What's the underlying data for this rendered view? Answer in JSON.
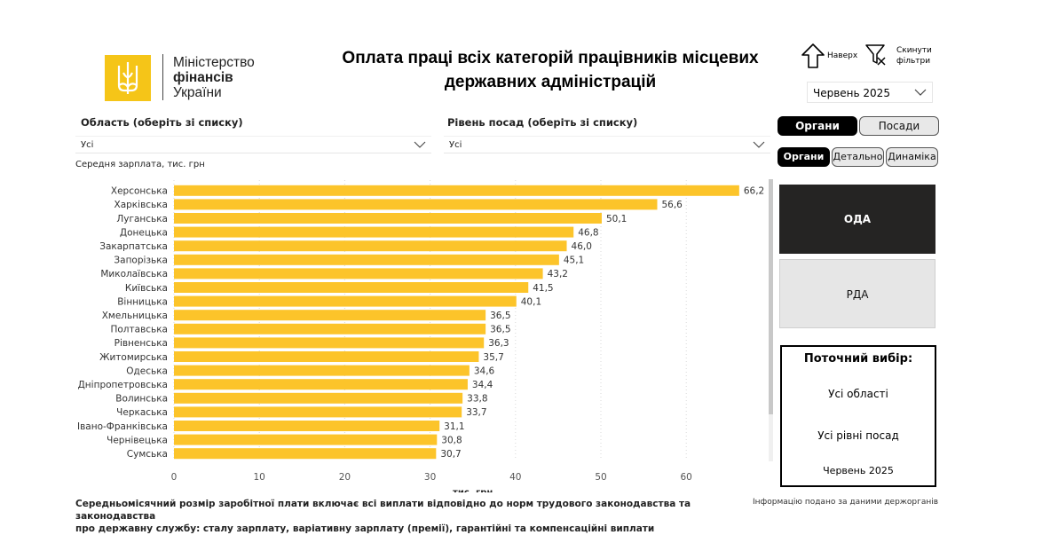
{
  "logo": {
    "line1": "Міністерство",
    "line2": "фінансів",
    "line3": "України"
  },
  "title": {
    "line1": "Оплата праці всіх категорій працівників місцевих",
    "line2": "державних адміністрацій"
  },
  "buttons": {
    "up_label": "Наверх",
    "reset_line1": "Скинути",
    "reset_line2": "фільтри"
  },
  "month_select": {
    "value": "Червень 2025"
  },
  "filters": {
    "region_label": "Область (оберіть зі списку)",
    "region_value": "Усі",
    "level_label": "Рівень посад (оберіть зі списку)",
    "level_value": "Усі"
  },
  "chart_caption": "Середня зарплата, тис. грн",
  "toggles": {
    "row1": [
      "Органи",
      "Посади"
    ],
    "row2": [
      "Органи",
      "Детально",
      "Динаміка"
    ]
  },
  "org_buttons": {
    "oda": "ОДА",
    "rda": "РДА"
  },
  "selection": {
    "title": "Поточний вибір:",
    "regions": "Усі області",
    "levels": "Усі рівні посад",
    "month": "Червень 2025"
  },
  "footnote": {
    "line1": "Середньомісячний розмір заробітної плати включає всі виплати відповідно до норм трудового законодавства та законодавства",
    "line2": "про державну службу: сталу зарплату, варіативну зарплату (премії), гарантійні та компенсаційні виплати"
  },
  "source_note": "Інформацію подано за даними держорганів",
  "colors": {
    "bar": "#FCC42A",
    "accent": "#000000",
    "oda_bg": "#252423",
    "logo": "#F5C518"
  },
  "chart_data": {
    "type": "bar",
    "orientation": "horizontal",
    "categories": [
      "Херсонська",
      "Харківська",
      "Луганська",
      "Донецька",
      "Закарпатська",
      "Запорізька",
      "Миколаївська",
      "Київська",
      "Вінницька",
      "Хмельницька",
      "Полтавська",
      "Рівненська",
      "Житомирська",
      "Одеська",
      "Дніпропетровська",
      "Волинська",
      "Черкаська",
      "Івано-Франківська",
      "Чернівецька",
      "Сумська"
    ],
    "values": [
      66.2,
      56.6,
      50.1,
      46.8,
      46.0,
      45.1,
      43.2,
      41.5,
      40.1,
      36.5,
      36.5,
      36.3,
      35.7,
      34.6,
      34.4,
      33.8,
      33.7,
      31.1,
      30.8,
      30.7
    ],
    "value_labels": [
      "66,2",
      "56,6",
      "50,1",
      "46,8",
      "46,0",
      "45,1",
      "43,2",
      "41,5",
      "40,1",
      "36,5",
      "36,5",
      "36,3",
      "35,7",
      "34,6",
      "34,4",
      "33,8",
      "33,7",
      "31,1",
      "30,8",
      "30,7"
    ],
    "xticks": [
      0,
      10,
      20,
      30,
      40,
      50,
      60
    ],
    "xlim": [
      0,
      70
    ],
    "xlabel": "тис. грн",
    "ylabel": "",
    "grid": true
  }
}
